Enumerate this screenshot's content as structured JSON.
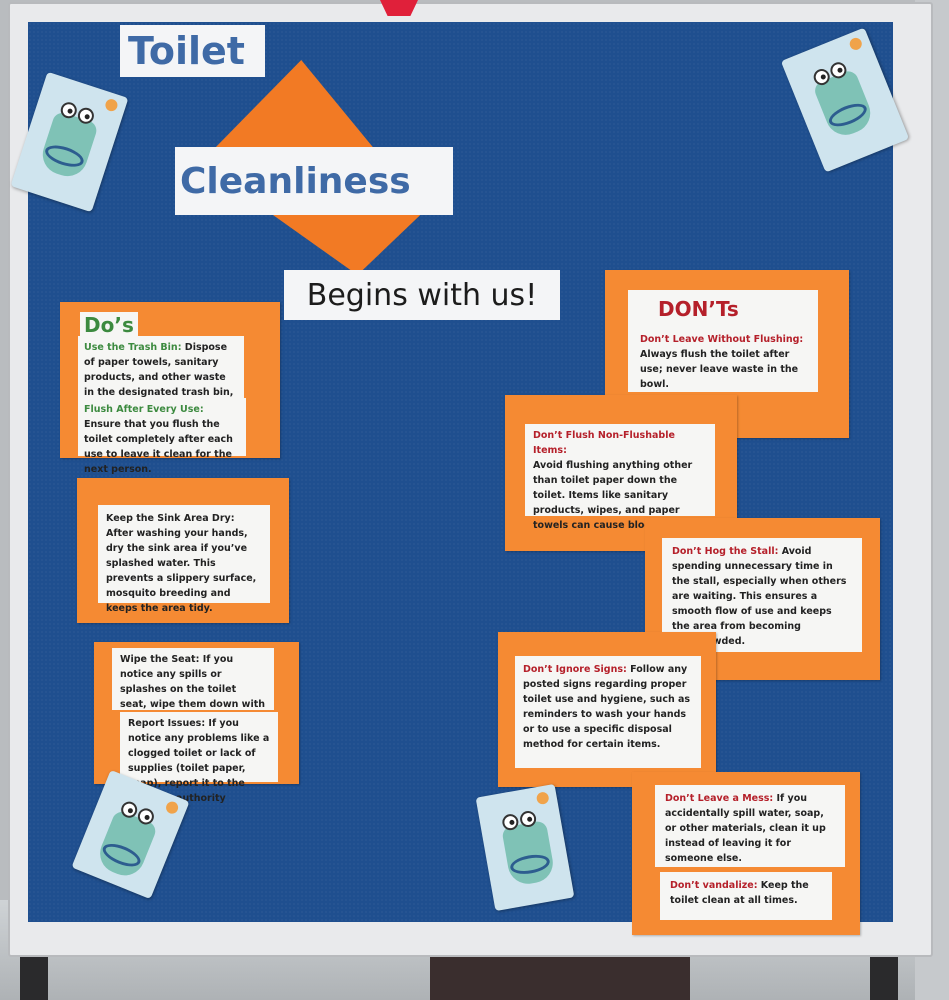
{
  "title_line1": "Toilet",
  "title_line2": "Cleanliness",
  "title_line3": "Begins with us!",
  "dos": {
    "heading": "Do’s",
    "items": [
      {
        "title": "Use the Trash Bin:",
        "text": " Dispose of paper towels, sanitary products, and other waste in the designated trash bin, not in the toilet."
      },
      {
        "title": "Flush After Every Use:",
        "text": " Ensure that you flush the toilet completely after each use to leave it clean for the next person."
      },
      {
        "title": "Keep the Sink Area Dry:",
        "text": " After washing your hands, dry the sink area if you’ve splashed water. This prevents a slippery surface, mosquito breeding and keeps the area tidy."
      },
      {
        "title": "Wipe the Seat:",
        "text": " If you notice any spills or splashes on the toilet seat, wipe them down with a tissue before leaving."
      },
      {
        "title": "Report Issues:",
        "text": " If you notice any problems like a clogged toilet or lack of supplies (toilet paper, soap), report it to the relevant authority promptly."
      }
    ]
  },
  "donts": {
    "heading": "DON’Ts",
    "items": [
      {
        "title": "Don’t Leave Without Flushing:",
        "text": "Always flush the toilet after use; never leave waste in the bowl."
      },
      {
        "title": "Don’t Flush Non-Flushable Items:",
        "text": "Avoid flushing anything other than toilet paper down the toilet. Items like sanitary products, wipes, and paper towels can cause blockages."
      },
      {
        "title": "Don’t Hog the Stall:",
        "text": " Avoid spending unnecessary time in the stall, especially when others are waiting. This ensures a smooth flow of use and keeps the area from becoming overcrowded."
      },
      {
        "title": "Don’t Ignore Signs:",
        "text": " Follow any posted signs regarding proper toilet use and hygiene, such as reminders to wash your hands or to use a specific disposal method for certain items."
      },
      {
        "title": "Don’t Leave a Mess:",
        "text": " If you accidentally spill water, soap, or other materials, clean it up instead of leaving it for someone else."
      },
      {
        "title": "Don’t vandalize:",
        "text": " Keep the toilet clean at all times."
      }
    ]
  },
  "colors": {
    "board": "#1f4f8f",
    "orange": "#f58a33",
    "title_blue": "#3f6aa6",
    "green": "#3c8a3f",
    "red": "#b5202a"
  },
  "stickers": [
    "toilet-character-icon",
    "toilet-character-icon",
    "toilet-character-icon",
    "toilet-character-icon"
  ]
}
